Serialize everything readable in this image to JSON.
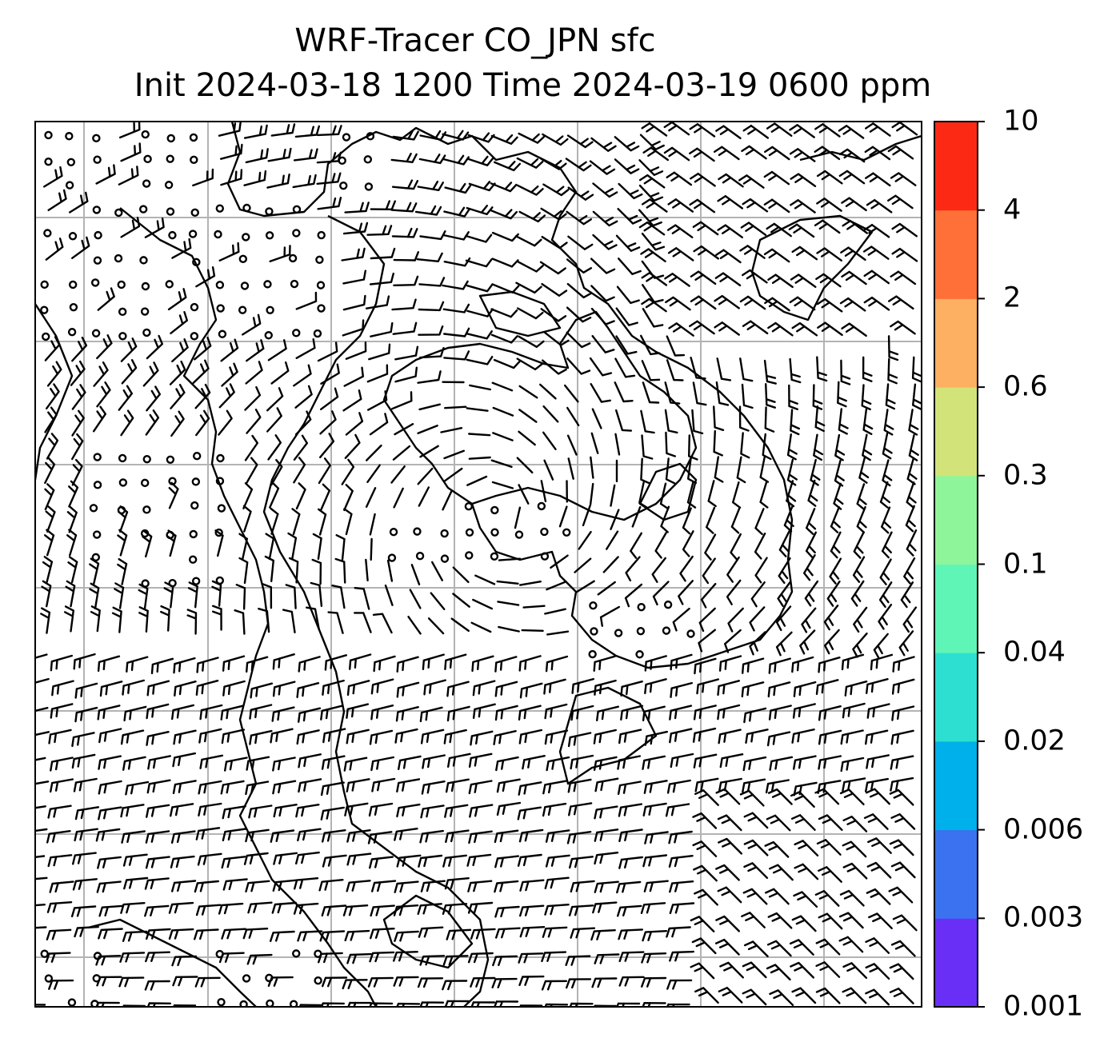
{
  "title": {
    "line1": "WRF-Tracer CO_JPN sfc",
    "line2": "Init 2024-03-18 1200 Time 2024-03-19 0600 ppm"
  },
  "colorbar": {
    "ticks": [
      "0.001",
      "0.003",
      "0.006",
      "0.02",
      "0.04",
      "0.1",
      "0.3",
      "0.6",
      "2",
      "4",
      "10"
    ],
    "colors": [
      "#6a2ff7",
      "#3a72f0",
      "#00b0ea",
      "#2ddfd0",
      "#5ef5b7",
      "#8ef59a",
      "#d2e37a",
      "#fdb062",
      "#fe7038",
      "#fc2a14"
    ]
  },
  "map": {
    "grid": "on",
    "wind_barbs": "on",
    "coastlines": "on"
  }
}
